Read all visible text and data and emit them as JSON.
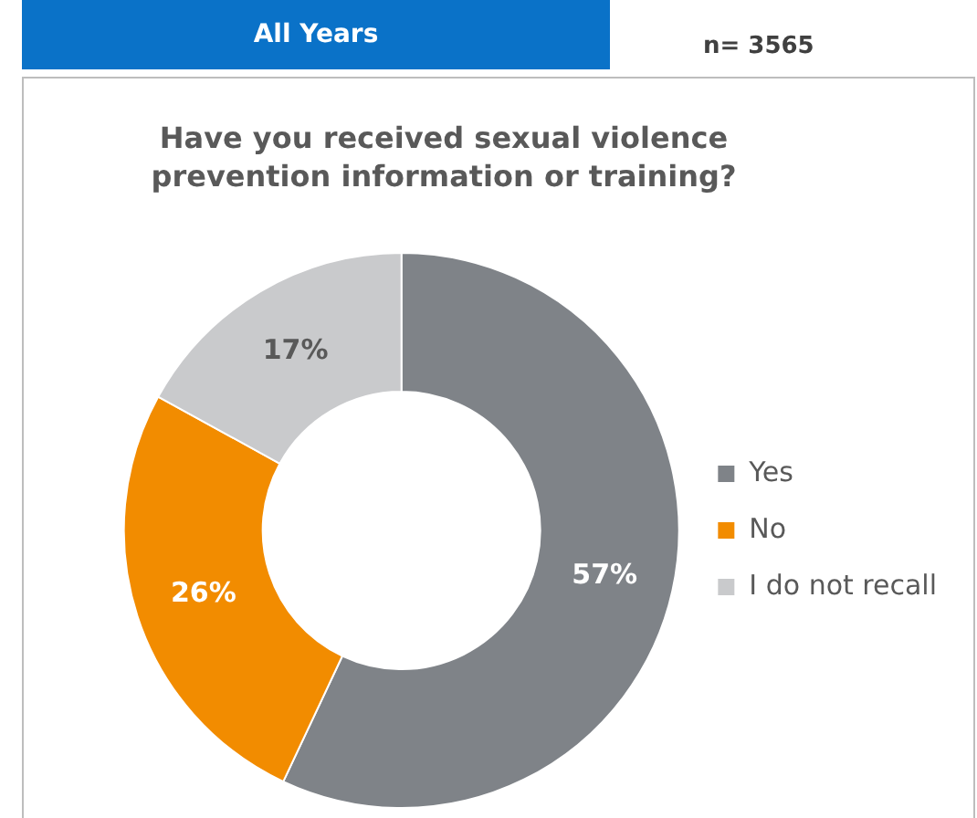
{
  "chart_data": {
    "type": "donut",
    "title": "Have you received sexual violence prevention information or training?",
    "annotations": [
      "All Years",
      "n= 3565"
    ],
    "categories": [
      "Yes",
      "No",
      "I do not recall"
    ],
    "values": [
      57,
      26,
      17
    ],
    "colors": [
      "#7f8388",
      "#f28c00",
      "#c9cacc"
    ],
    "value_labels": [
      "57%",
      "26%",
      "17%"
    ],
    "legend": "right"
  }
}
